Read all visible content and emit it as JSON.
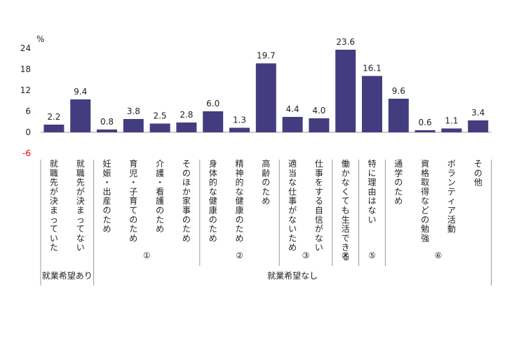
{
  "chart_data": {
    "type": "bar",
    "ylabel": "%",
    "ylim": [
      -6,
      24
    ],
    "yticks": [
      "24",
      "18",
      "12",
      "6",
      "0",
      "-6"
    ],
    "negative_tick_color": "#e00000",
    "bar_color": "#433d80",
    "grid": false,
    "categories": [
      "就職先が決まっていた",
      "就職先が決まってない",
      "妊娠・出産のため",
      "育児・子育てのため",
      "介護・看護のため",
      "そのほか家事のため",
      "身体的な健康のため",
      "精神的な健康のため",
      "高齢のため",
      "適当な仕事がないため",
      "仕事をする自信がない",
      "働かなくても生活できる",
      "特に理由はない",
      "通学のため",
      "資格取得などの勉強",
      "ボランティア活動",
      "その他"
    ],
    "values": [
      2.2,
      9.4,
      0.8,
      3.8,
      2.5,
      2.8,
      6.0,
      1.3,
      19.7,
      4.4,
      4.0,
      23.6,
      16.1,
      9.6,
      0.6,
      1.1,
      3.4
    ],
    "value_labels": [
      "2.2",
      "9.4",
      "0.8",
      "3.8",
      "2.5",
      "2.8",
      "6.0",
      "1.3",
      "19.7",
      "4.4",
      "4.0",
      "23.6",
      "16.1",
      "9.6",
      "0.6",
      "1.1",
      "3.4"
    ],
    "subgroups": [
      {
        "label": "",
        "start": 0,
        "end": 1
      },
      {
        "label": "①",
        "start": 2,
        "end": 5
      },
      {
        "label": "②",
        "start": 6,
        "end": 8
      },
      {
        "label": "③",
        "start": 9,
        "end": 10
      },
      {
        "label": "④",
        "start": 11,
        "end": 11
      },
      {
        "label": "⑤",
        "start": 12,
        "end": 12
      },
      {
        "label": "⑥",
        "start": 13,
        "end": 16
      }
    ],
    "groups": [
      {
        "label": "就業希望あり",
        "start": 0,
        "end": 1
      },
      {
        "label": "就業希望なし",
        "start": 2,
        "end": 16
      }
    ]
  }
}
